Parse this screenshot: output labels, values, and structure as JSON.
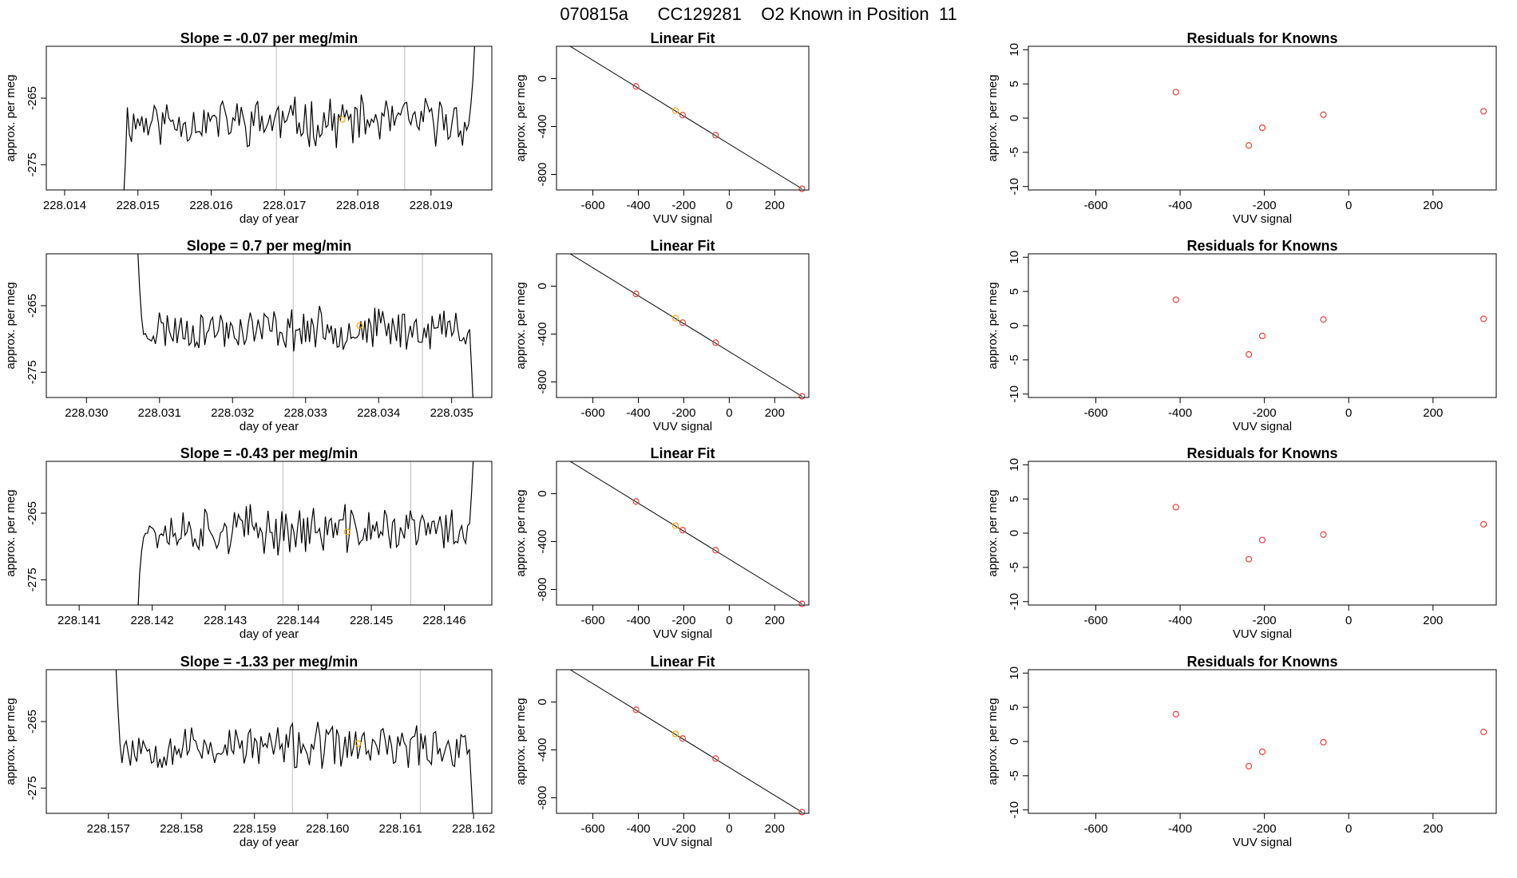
{
  "main_title": "070815a      CC129281    O2 Known in Position  11",
  "colors": {
    "line": "#000000",
    "vline": "#bebebe",
    "marker_orange": "#ffa500",
    "marker_red": "#e8403a"
  },
  "chart_data": [
    {
      "row": 0,
      "timeseries": {
        "type": "line",
        "title": "Slope =  -0.07  per meg/min",
        "xlabel": "day of year",
        "ylabel": "approx. per meg",
        "xlim": [
          228.01375,
          228.01983
        ],
        "ylim": [
          -278.8,
          -257.2
        ],
        "xticks": [
          228.014,
          228.015,
          228.016,
          228.017,
          228.018,
          228.019
        ],
        "xtick_labels": [
          "228.014",
          "228.015",
          "228.016",
          "228.017",
          "228.018",
          "228.019"
        ],
        "yticks": [
          -265,
          -275
        ],
        "ytick_labels": [
          "-265",
          "-275"
        ],
        "vlines": [
          228.01689,
          228.01864
        ],
        "marker": {
          "x": 228.01779,
          "y": -268.2
        },
        "x_start": 228.01475,
        "x_end": 228.01975,
        "data_start": 228.0148,
        "data_end": 228.0196,
        "trace_mean": -268.5,
        "trace_amp": 3.0,
        "seed": 11,
        "start_y": -281,
        "end_y": -256
      },
      "linear_fit": {
        "type": "scatter",
        "title": "Linear Fit",
        "xlabel": "VUV signal",
        "ylabel": "approx. per meg",
        "xlim": [
          -760,
          350
        ],
        "ylim": [
          -930,
          270
        ],
        "xticks": [
          -600,
          -400,
          -200,
          0,
          200
        ],
        "xtick_labels": [
          "-600",
          "-400",
          "-200",
          "0",
          "200"
        ],
        "yticks": [
          0,
          -400,
          -800
        ],
        "ytick_labels": [
          "0",
          "-400",
          "-800"
        ],
        "line": {
          "x0": -700,
          "y0": 270,
          "x1": 320,
          "y1": -920
        },
        "points": [
          [
            -410,
            -65
          ],
          [
            -237,
            -267
          ],
          [
            -205,
            -305
          ],
          [
            -60,
            -472
          ],
          [
            320,
            -920
          ]
        ],
        "highlight_index": 1
      },
      "residuals": {
        "type": "scatter",
        "title": "Residuals for Knowns",
        "xlabel": "VUV signal",
        "ylabel": "approx. per meg",
        "xlim": [
          -760,
          350
        ],
        "ylim": [
          -10.5,
          10.5
        ],
        "xticks": [
          -600,
          -400,
          -200,
          0,
          200
        ],
        "xtick_labels": [
          "-600",
          "-400",
          "-200",
          "0",
          "200"
        ],
        "yticks": [
          10,
          5,
          0,
          -5,
          -10
        ],
        "ytick_labels": [
          "10",
          "5",
          "0",
          "-5",
          "-10"
        ],
        "points": [
          [
            -410,
            3.8
          ],
          [
            -237,
            -4.0
          ],
          [
            -205,
            -1.4
          ],
          [
            -60,
            0.5
          ],
          [
            320,
            1.0
          ]
        ]
      }
    },
    {
      "row": 1,
      "timeseries": {
        "type": "line",
        "title": "Slope =  0.7  per meg/min",
        "xlabel": "day of year",
        "ylabel": "approx. per meg",
        "xlim": [
          228.02945,
          228.03555
        ],
        "ylim": [
          -278.8,
          -257.2
        ],
        "xticks": [
          228.03,
          228.031,
          228.032,
          228.033,
          228.034,
          228.035
        ],
        "xtick_labels": [
          "228.030",
          "228.031",
          "228.032",
          "228.033",
          "228.034",
          "228.035"
        ],
        "yticks": [
          -265,
          -275
        ],
        "ytick_labels": [
          "-265",
          "-275"
        ],
        "vlines": [
          228.03283,
          228.0346
        ],
        "marker": {
          "x": 228.03374,
          "y": -268.0
        },
        "x_start": 228.03065,
        "x_end": 228.03538,
        "data_start": 228.0307,
        "data_end": 228.0353,
        "trace_mean": -268.5,
        "trace_amp": 2.6,
        "seed": 23,
        "start_y": -256,
        "end_y": -281
      },
      "linear_fit": {
        "type": "scatter",
        "title": "Linear Fit",
        "xlabel": "VUV signal",
        "ylabel": "approx. per meg",
        "xlim": [
          -760,
          350
        ],
        "ylim": [
          -930,
          270
        ],
        "xticks": [
          -600,
          -400,
          -200,
          0,
          200
        ],
        "xtick_labels": [
          "-600",
          "-400",
          "-200",
          "0",
          "200"
        ],
        "yticks": [
          0,
          -400,
          -800
        ],
        "ytick_labels": [
          "0",
          "-400",
          "-800"
        ],
        "line": {
          "x0": -700,
          "y0": 270,
          "x1": 320,
          "y1": -920
        },
        "points": [
          [
            -410,
            -65
          ],
          [
            -237,
            -267
          ],
          [
            -205,
            -305
          ],
          [
            -60,
            -472
          ],
          [
            320,
            -920
          ]
        ],
        "highlight_index": 1
      },
      "residuals": {
        "type": "scatter",
        "title": "Residuals for Knowns",
        "xlabel": "VUV signal",
        "ylabel": "approx. per meg",
        "xlim": [
          -760,
          350
        ],
        "ylim": [
          -10.5,
          10.5
        ],
        "xticks": [
          -600,
          -400,
          -200,
          0,
          200
        ],
        "xtick_labels": [
          "-600",
          "-400",
          "-200",
          "0",
          "200"
        ],
        "yticks": [
          10,
          5,
          0,
          -5,
          -10
        ],
        "ytick_labels": [
          "10",
          "5",
          "0",
          "-5",
          "-10"
        ],
        "points": [
          [
            -410,
            3.8
          ],
          [
            -237,
            -4.2
          ],
          [
            -205,
            -1.5
          ],
          [
            -60,
            0.9
          ],
          [
            320,
            1.0
          ]
        ]
      }
    },
    {
      "row": 2,
      "timeseries": {
        "type": "line",
        "title": "Slope =  -0.43  per meg/min",
        "xlabel": "day of year",
        "ylabel": "approx. per meg",
        "xlim": [
          228.14055,
          228.14665
        ],
        "ylim": [
          -278.8,
          -257.2
        ],
        "xticks": [
          228.141,
          228.142,
          228.143,
          228.144,
          228.145,
          228.146
        ],
        "xtick_labels": [
          "228.141",
          "228.142",
          "228.143",
          "228.144",
          "228.145",
          "228.146"
        ],
        "yticks": [
          -265,
          -275
        ],
        "ytick_labels": [
          "-265",
          "-275"
        ],
        "vlines": [
          228.14379,
          228.14554
        ],
        "marker": {
          "x": 228.14467,
          "y": -267.8
        },
        "x_start": 228.14175,
        "x_end": 228.1465,
        "data_start": 228.1418,
        "data_end": 228.1464,
        "trace_mean": -267.5,
        "trace_amp": 3.0,
        "seed": 37,
        "start_y": -281,
        "end_y": -256
      },
      "linear_fit": {
        "type": "scatter",
        "title": "Linear Fit",
        "xlabel": "VUV signal",
        "ylabel": "approx. per meg",
        "xlim": [
          -760,
          350
        ],
        "ylim": [
          -930,
          270
        ],
        "xticks": [
          -600,
          -400,
          -200,
          0,
          200
        ],
        "xtick_labels": [
          "-600",
          "-400",
          "-200",
          "0",
          "200"
        ],
        "yticks": [
          0,
          -400,
          -800
        ],
        "ytick_labels": [
          "0",
          "-400",
          "-800"
        ],
        "line": {
          "x0": -700,
          "y0": 270,
          "x1": 320,
          "y1": -920
        },
        "points": [
          [
            -410,
            -65
          ],
          [
            -237,
            -267
          ],
          [
            -205,
            -305
          ],
          [
            -60,
            -472
          ],
          [
            320,
            -920
          ]
        ],
        "highlight_index": 1
      },
      "residuals": {
        "type": "scatter",
        "title": "Residuals for Knowns",
        "xlabel": "VUV signal",
        "ylabel": "approx. per meg",
        "xlim": [
          -760,
          350
        ],
        "ylim": [
          -10.5,
          10.5
        ],
        "xticks": [
          -600,
          -400,
          -200,
          0,
          200
        ],
        "xtick_labels": [
          "-600",
          "-400",
          "-200",
          "0",
          "200"
        ],
        "yticks": [
          10,
          5,
          0,
          -5,
          -10
        ],
        "ytick_labels": [
          "10",
          "5",
          "0",
          "-5",
          "-10"
        ],
        "points": [
          [
            -410,
            3.8
          ],
          [
            -237,
            -3.8
          ],
          [
            -205,
            -1.0
          ],
          [
            -60,
            -0.2
          ],
          [
            320,
            1.3
          ]
        ]
      }
    },
    {
      "row": 3,
      "timeseries": {
        "type": "line",
        "title": "Slope =  -1.33  per meg/min",
        "xlabel": "day of year",
        "ylabel": "approx. per meg",
        "xlim": [
          228.15615,
          228.16225
        ],
        "ylim": [
          -278.8,
          -257.2
        ],
        "xticks": [
          228.157,
          228.158,
          228.159,
          228.16,
          228.161,
          228.162
        ],
        "xtick_labels": [
          "228.157",
          "228.158",
          "228.159",
          "228.160",
          "228.161",
          "228.162"
        ],
        "yticks": [
          -265,
          -275
        ],
        "ytick_labels": [
          "-265",
          "-275"
        ],
        "vlines": [
          228.15952,
          228.16127
        ],
        "marker": {
          "x": 228.16042,
          "y": -268.3
        },
        "x_start": 228.1571,
        "x_end": 228.16205,
        "data_start": 228.1571,
        "data_end": 228.162,
        "trace_mean": -268.8,
        "trace_amp": 2.8,
        "seed": 53,
        "start_y": -256,
        "end_y": -281
      },
      "linear_fit": {
        "type": "scatter",
        "title": "Linear Fit",
        "xlabel": "VUV signal",
        "ylabel": "approx. per meg",
        "xlim": [
          -760,
          350
        ],
        "ylim": [
          -930,
          270
        ],
        "xticks": [
          -600,
          -400,
          -200,
          0,
          200
        ],
        "xtick_labels": [
          "-600",
          "-400",
          "-200",
          "0",
          "200"
        ],
        "yticks": [
          0,
          -400,
          -800
        ],
        "ytick_labels": [
          "0",
          "-400",
          "-800"
        ],
        "line": {
          "x0": -700,
          "y0": 270,
          "x1": 320,
          "y1": -920
        },
        "points": [
          [
            -410,
            -65
          ],
          [
            -237,
            -267
          ],
          [
            -205,
            -305
          ],
          [
            -60,
            -472
          ],
          [
            320,
            -920
          ]
        ],
        "highlight_index": 1
      },
      "residuals": {
        "type": "scatter",
        "title": "Residuals for Knowns",
        "xlabel": "VUV signal",
        "ylabel": "approx. per meg",
        "xlim": [
          -760,
          350
        ],
        "ylim": [
          -10.5,
          10.5
        ],
        "xticks": [
          -600,
          -400,
          -200,
          0,
          200
        ],
        "xtick_labels": [
          "-600",
          "-400",
          "-200",
          "0",
          "200"
        ],
        "yticks": [
          10,
          5,
          0,
          -5,
          -10
        ],
        "ytick_labels": [
          "10",
          "5",
          "0",
          "-5",
          "-10"
        ],
        "points": [
          [
            -410,
            4.0
          ],
          [
            -237,
            -3.6
          ],
          [
            -205,
            -1.5
          ],
          [
            -60,
            -0.1
          ],
          [
            320,
            1.4
          ]
        ]
      }
    }
  ]
}
